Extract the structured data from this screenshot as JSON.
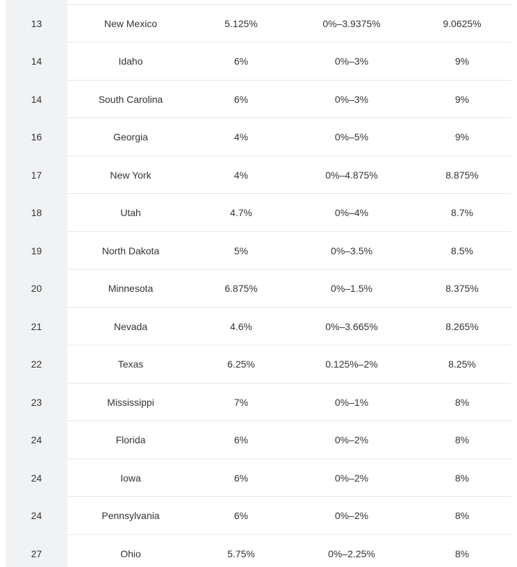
{
  "table": {
    "rows": [
      {
        "rank": "",
        "state": "",
        "state_rate": "",
        "local_range": "",
        "combined": ""
      },
      {
        "rank": "13",
        "state": "New Mexico",
        "state_rate": "5.125%",
        "local_range": "0%–3.9375%",
        "combined": "9.0625%"
      },
      {
        "rank": "14",
        "state": "Idaho",
        "state_rate": "6%",
        "local_range": "0%–3%",
        "combined": "9%"
      },
      {
        "rank": "14",
        "state": "South Carolina",
        "state_rate": "6%",
        "local_range": "0%–3%",
        "combined": "9%"
      },
      {
        "rank": "16",
        "state": "Georgia",
        "state_rate": "4%",
        "local_range": "0%–5%",
        "combined": "9%"
      },
      {
        "rank": "17",
        "state": "New York",
        "state_rate": "4%",
        "local_range": "0%–4.875%",
        "combined": "8.875%"
      },
      {
        "rank": "18",
        "state": "Utah",
        "state_rate": "4.7%",
        "local_range": "0%–4%",
        "combined": "8.7%"
      },
      {
        "rank": "19",
        "state": "North Dakota",
        "state_rate": "5%",
        "local_range": "0%–3.5%",
        "combined": "8.5%"
      },
      {
        "rank": "20",
        "state": "Minnesota",
        "state_rate": "6.875%",
        "local_range": "0%–1.5%",
        "combined": "8.375%"
      },
      {
        "rank": "21",
        "state": "Nevada",
        "state_rate": "4.6%",
        "local_range": "0%–3.665%",
        "combined": "8.265%"
      },
      {
        "rank": "22",
        "state": "Texas",
        "state_rate": "6.25%",
        "local_range": "0.125%–2%",
        "combined": "8.25%"
      },
      {
        "rank": "23",
        "state": "Mississippi",
        "state_rate": "7%",
        "local_range": "0%–1%",
        "combined": "8%"
      },
      {
        "rank": "24",
        "state": "Florida",
        "state_rate": "6%",
        "local_range": "0%–2%",
        "combined": "8%"
      },
      {
        "rank": "24",
        "state": "Iowa",
        "state_rate": "6%",
        "local_range": "0%–2%",
        "combined": "8%"
      },
      {
        "rank": "24",
        "state": "Pennsylvania",
        "state_rate": "6%",
        "local_range": "0%–2%",
        "combined": "8%"
      },
      {
        "rank": "27",
        "state": "Ohio",
        "state_rate": "5.75%",
        "local_range": "0%–2.25%",
        "combined": "8%"
      }
    ]
  }
}
